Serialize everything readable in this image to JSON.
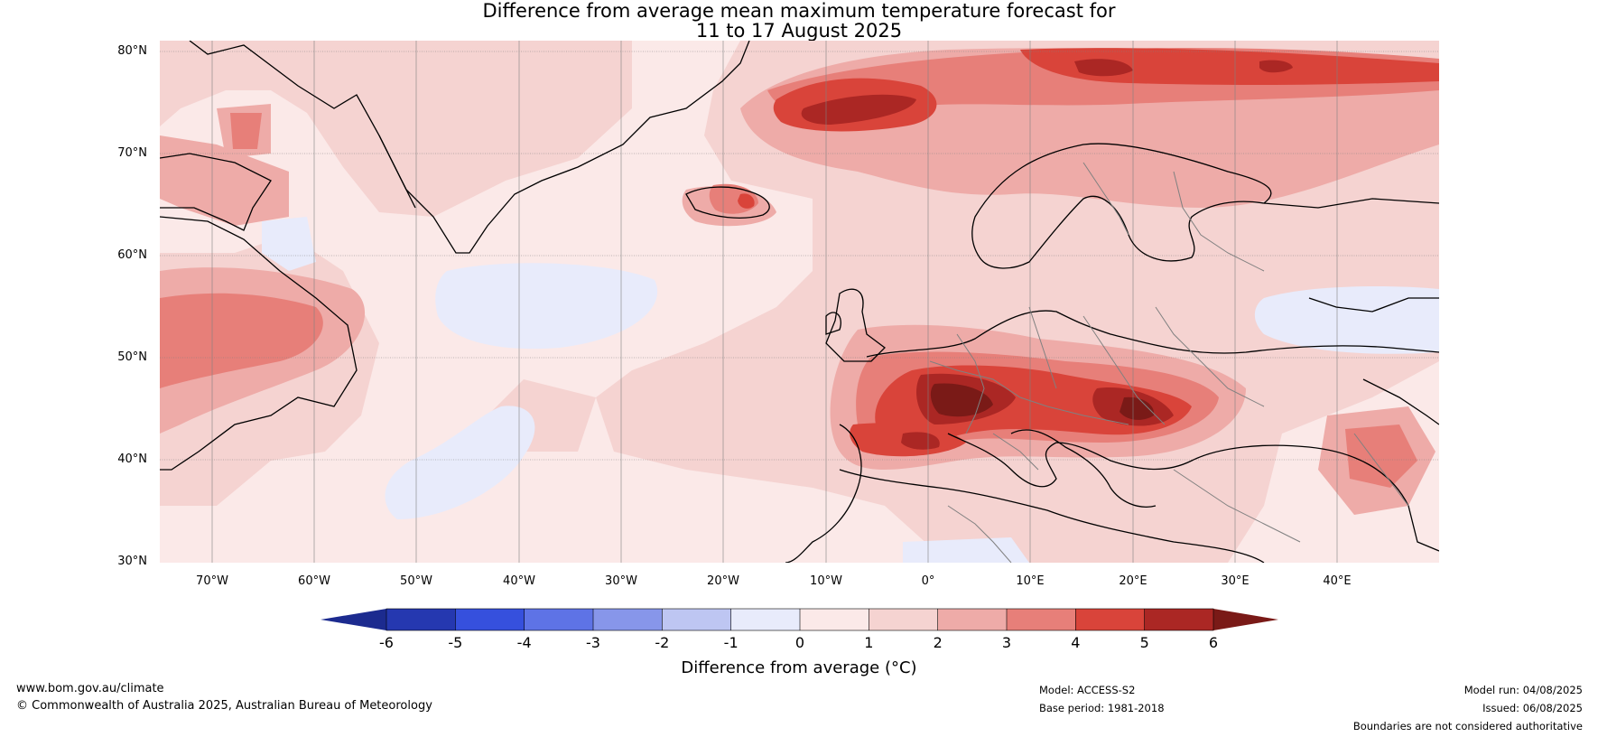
{
  "title": {
    "line1": "Difference from average mean maximum temperature forecast for",
    "line2": "11 to 17 August 2025"
  },
  "map": {
    "lat_labels": [
      "80°N",
      "70°N",
      "60°N",
      "50°N",
      "40°N",
      "30°N"
    ],
    "lon_labels": [
      "70°W",
      "60°W",
      "50°W",
      "40°W",
      "30°W",
      "20°W",
      "10°W",
      "0°",
      "10°E",
      "20°E",
      "30°E",
      "40°E"
    ],
    "lon_range": [
      -75,
      50
    ],
    "lat_range": [
      30,
      81
    ]
  },
  "colorbar": {
    "title": "Difference from average (°C)",
    "tick_labels": [
      "-6",
      "-5",
      "-4",
      "-3",
      "-2",
      "-1",
      "0",
      "1",
      "2",
      "3",
      "4",
      "5",
      "6"
    ],
    "colors": [
      "#1c2b8f",
      "#2538b0",
      "#3650dd",
      "#5e73e6",
      "#8796ea",
      "#bec6f2",
      "#e8ebfb",
      "#fbe9e8",
      "#f5d3d1",
      "#eeaba8",
      "#e77f79",
      "#d9443a",
      "#ab2724",
      "#7a1a17"
    ]
  },
  "footer": {
    "website": "www.bom.gov.au/climate",
    "copyright": "© Commonwealth of Australia 2025, Australian Bureau of Meteorology",
    "model": "Model: ACCESS-S2",
    "base_period": "Base period: 1981-2018",
    "model_run": "Model run: 04/08/2025",
    "issued": "Issued: 06/08/2025",
    "disclaimer": "Boundaries are not considered authoritative"
  }
}
